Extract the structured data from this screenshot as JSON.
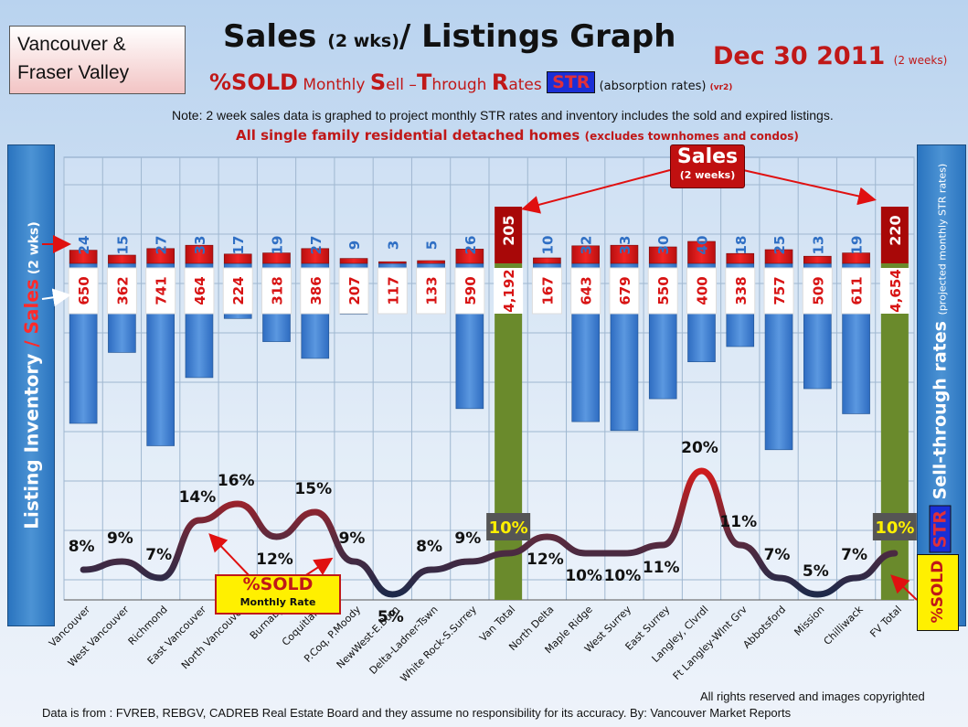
{
  "header": {
    "region_line1": "Vancouver &",
    "region_line2": "Fraser Valley",
    "title_a": "Sales ",
    "title_b": "(2 wks)",
    "title_c": "/ Listings Graph",
    "date_main": "Dec 30 2011",
    "date_sub": "(2 weeks)",
    "sub_sold": "%SOLD",
    "sub_m1": " Monthly ",
    "sub_s": "S",
    "sub_ell": "ell –",
    "sub_t": "T",
    "sub_hrough": "hrough ",
    "sub_r": "R",
    "sub_ates": "ates ",
    "sub_str": "STR",
    "sub_abs": " (absorption rates) ",
    "sub_vr": "(vr2)",
    "note": "Note: 2 week sales data is graphed to project monthly STR rates and inventory includes the sold and expired listings.",
    "scope_main": "All single family residential detached homes ",
    "scope_sub": "(excludes townhomes and condos)"
  },
  "left_axis": {
    "p1": "Listing Inventory",
    "p2": " / ",
    "p3": "Sales",
    "p4": " (2 wks)"
  },
  "right_axis": {
    "badge": "STR",
    "p1": " Sell-through rates ",
    "p2": "(projected monthly STR rates)"
  },
  "sold_badge_right": "%SOLD",
  "sold_legend": {
    "l1": "%SOLD",
    "l2": "Monthly Rate"
  },
  "sales_callout": {
    "l1": "Sales",
    "l2": "(2 weeks)"
  },
  "footer": {
    "rights": "All rights reserved and  images copyrighted",
    "source": "Data is  from : FVREB, REBGV, CADREB Real Estate Board and they assume no responsibility  for its accuracy. By: Vancouver Market Reports"
  },
  "colors": {
    "sales": "#d81414",
    "listings": "#3d7ed3",
    "total": "#6a8a2c",
    "str_line_low": "#1f2a4a",
    "str_line_high": "#d01c1c"
  },
  "chart_data": {
    "type": "bar",
    "categories": [
      "Vancouver",
      "West Vancouver",
      "Richmond",
      "East Vancouver",
      "North Vancouver",
      "Burnaby",
      "Coquitlam",
      "P.Coq, P.Moody",
      "NewWest-E.Burn",
      "Delta-Ladner-Tswn",
      "White Rock-S.Surrey",
      "Van Total",
      "North Delta",
      "Maple Ridge",
      "West Surrey",
      "East Surrey",
      "Langley, Clvrdl",
      "Ft Langley-Wlnt Grv",
      "Abbotsford",
      "Mission",
      "Chilliwack",
      "FV Total"
    ],
    "series": [
      {
        "name": "Sales",
        "values": [
          24,
          15,
          27,
          33,
          17,
          19,
          27,
          9,
          3,
          5,
          26,
          205,
          10,
          32,
          33,
          30,
          40,
          18,
          25,
          13,
          19,
          220
        ]
      },
      {
        "name": "Listing Inventory",
        "values": [
          650,
          362,
          741,
          464,
          224,
          318,
          386,
          207,
          117,
          133,
          590,
          4192,
          167,
          643,
          679,
          550,
          400,
          338,
          757,
          509,
          611,
          4654
        ]
      },
      {
        "name": "%SOLD",
        "values": [
          8,
          9,
          7,
          14,
          16,
          12,
          15,
          9,
          5,
          8,
          9,
          10,
          12,
          10,
          10,
          11,
          20,
          11,
          7,
          5,
          7,
          10
        ]
      }
    ],
    "inventory_labels": [
      "650",
      "362",
      "741",
      "464",
      "224",
      "318",
      "386",
      "207",
      "117",
      "133",
      "590",
      "4,192",
      "167",
      "643",
      "679",
      "550",
      "400",
      "338",
      "757",
      "509",
      "611",
      "4,654"
    ],
    "totals": [
      "Van Total",
      "FV Total"
    ],
    "grid": true
  }
}
